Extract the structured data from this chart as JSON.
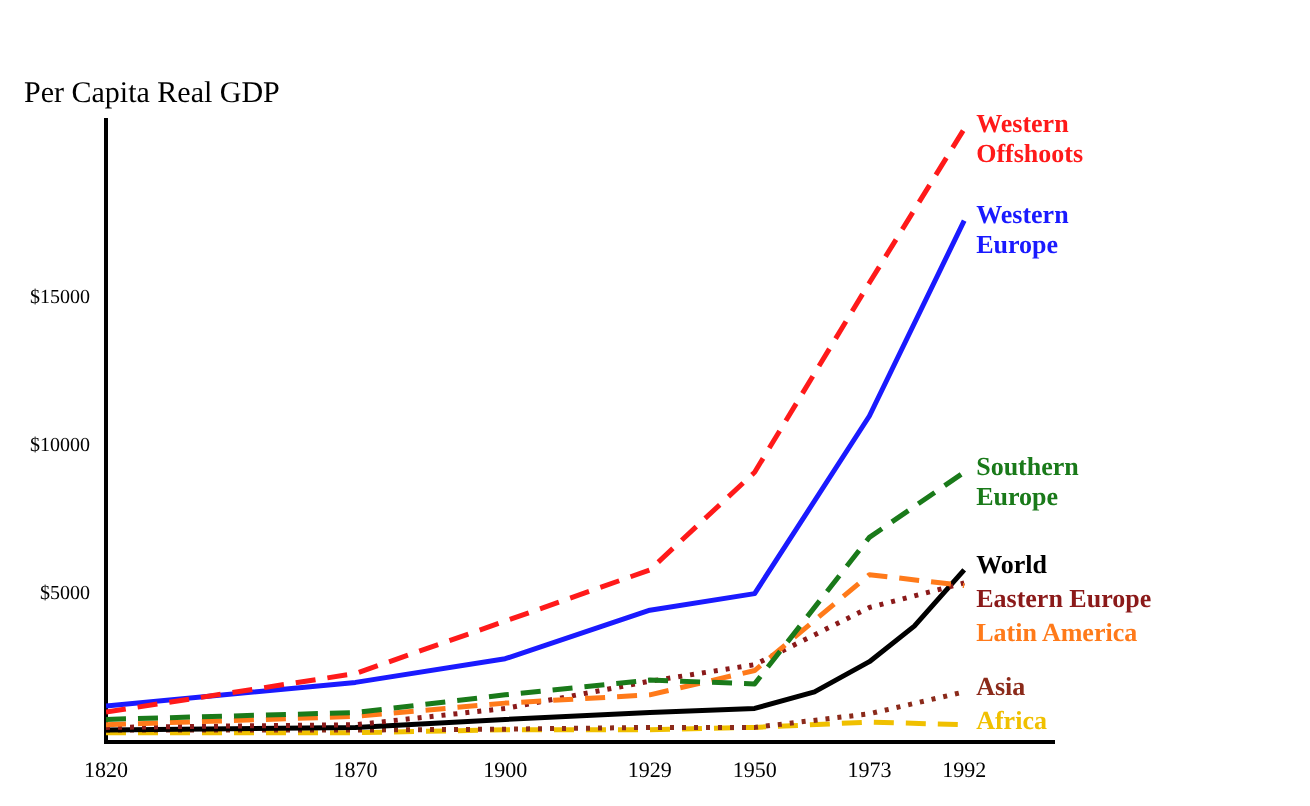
{
  "chart_data": {
    "type": "line",
    "title": "Per Capita Real GDP",
    "x": [
      1820,
      1870,
      1900,
      1929,
      1950,
      1973,
      1992
    ],
    "xlim": [
      1820,
      2010
    ],
    "xticks": [
      1820,
      1870,
      1900,
      1929,
      1950,
      1973,
      1992
    ],
    "ylim": [
      0,
      21000
    ],
    "yticks": [
      {
        "value": 5000,
        "label": "$5000"
      },
      {
        "value": 10000,
        "label": "$10000"
      },
      {
        "value": 15000,
        "label": "$15000"
      }
    ],
    "grid": false,
    "legend": false,
    "marker": "none",
    "series": [
      {
        "name": "Western Offshoots",
        "color": "#ff1a1a",
        "line_style": "dashed",
        "values": [
          1000,
          2300,
          4070,
          5800,
          9100,
          15500,
          20700
        ]
      },
      {
        "name": "Western Europe",
        "color": "#1a1aff",
        "line_style": "solid",
        "values": [
          1200,
          2000,
          2800,
          4440,
          5000,
          11000,
          17600
        ]
      },
      {
        "name": "Southern Europe",
        "color": "#1a7a1a",
        "line_style": "dashed",
        "values": [
          750,
          980,
          1580,
          2080,
          1950,
          6900,
          9100
        ]
      },
      {
        "name": "Latin America",
        "color": "#ff7a1a",
        "line_style": "dashed",
        "values": [
          570,
          850,
          1300,
          1580,
          2400,
          5640,
          5270
        ]
      },
      {
        "name": "Eastern Europe",
        "color": "#8b1a1a",
        "line_style": "dotted",
        "values": [
          480,
          570,
          1120,
          2040,
          2600,
          4530,
          5360
        ]
      },
      {
        "name": "World",
        "color": "#000000",
        "line_style": "solid",
        "x": [
          1820,
          1870,
          1900,
          1929,
          1950,
          1962,
          1973,
          1982,
          1992
        ],
        "values": [
          390,
          480,
          750,
          980,
          1120,
          1680,
          2700,
          3900,
          5800
        ]
      },
      {
        "name": "Asia",
        "color": "#8b2a1a",
        "line_style": "dotted",
        "values": [
          390,
          390,
          420,
          480,
          480,
          940,
          1680
        ]
      },
      {
        "name": "Africa",
        "color": "#f0c000",
        "line_style": "dashed",
        "values": [
          300,
          300,
          400,
          400,
          480,
          660,
          570
        ]
      }
    ]
  }
}
